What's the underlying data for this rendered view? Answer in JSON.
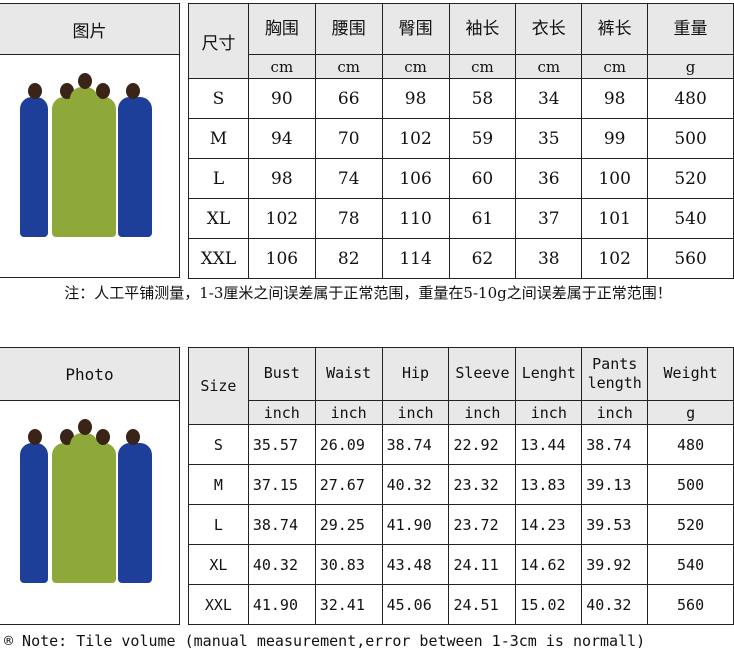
{
  "cn": {
    "photo_label": "图片",
    "size_label": "尺寸",
    "headers": [
      "胸围",
      "腰围",
      "臀围",
      "袖长",
      "衣长",
      "裤长",
      "重量"
    ],
    "units": [
      "cm",
      "cm",
      "cm",
      "cm",
      "cm",
      "cm",
      "g"
    ],
    "rows": [
      [
        "S",
        "90",
        "66",
        "98",
        "58",
        "34",
        "98",
        "480"
      ],
      [
        "M",
        "94",
        "70",
        "102",
        "59",
        "35",
        "99",
        "500"
      ],
      [
        "L",
        "98",
        "74",
        "106",
        "60",
        "36",
        "100",
        "520"
      ],
      [
        "XL",
        "102",
        "78",
        "110",
        "61",
        "37",
        "101",
        "540"
      ],
      [
        "XXL",
        "106",
        "82",
        "114",
        "62",
        "38",
        "102",
        "560"
      ]
    ],
    "note": "注：人工平铺测量，1-3厘米之间误差属于正常范围，重量在5-10g之间误差属于正常范围！"
  },
  "en": {
    "photo_label": "Photo",
    "size_label": "Size",
    "headers": [
      "Bust",
      "Waist",
      "Hip",
      "Sleeve",
      "Lenght",
      "Pants length",
      "Weight"
    ],
    "units": [
      "inch",
      "inch",
      "inch",
      "inch",
      "inch",
      "inch",
      "g"
    ],
    "rows": [
      [
        "S",
        "35.57",
        "26.09",
        "38.74",
        "22.92",
        "13.44",
        "38.74",
        "480"
      ],
      [
        "M",
        "37.15",
        "27.67",
        "40.32",
        "23.32",
        "13.83",
        "39.13",
        "500"
      ],
      [
        "L",
        "38.74",
        "29.25",
        "41.90",
        "23.72",
        "14.23",
        "39.53",
        "520"
      ],
      [
        "XL",
        "40.32",
        "30.83",
        "43.48",
        "24.11",
        "14.62",
        "39.92",
        "540"
      ],
      [
        "XXL",
        "41.90",
        "32.41",
        "45.06",
        "24.51",
        "15.02",
        "40.32",
        "560"
      ]
    ],
    "note": "® Note: Tile volume (manual measurement,error between 1-3cm is normall)"
  },
  "colors": {
    "header_bg": "#e8e8e8",
    "royal_blue": "#1e3f99",
    "olive_green": "#8fa83a"
  }
}
